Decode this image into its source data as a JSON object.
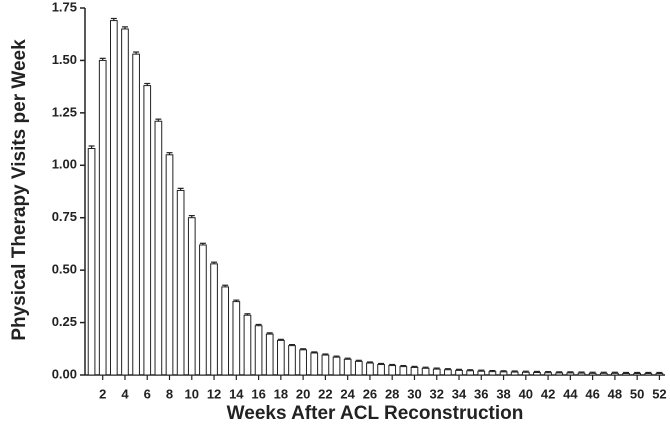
{
  "chart_data": {
    "type": "bar",
    "x_label": "Weeks After ACL Reconstruction",
    "y_label": "Physical Therapy Visits per Week",
    "categories": [
      null,
      "2",
      null,
      "4",
      null,
      "6",
      null,
      "8",
      null,
      "10",
      null,
      "12",
      null,
      "14",
      null,
      "16",
      null,
      "18",
      null,
      "20",
      null,
      "22",
      null,
      "24",
      null,
      "26",
      null,
      "28",
      null,
      "30",
      null,
      "32",
      null,
      "34",
      null,
      "36",
      null,
      "38",
      null,
      "40",
      null,
      "42",
      null,
      "44",
      null,
      "46",
      null,
      "48",
      null,
      "50",
      null,
      "52"
    ],
    "values": [
      1.08,
      1.5,
      1.69,
      1.65,
      1.53,
      1.38,
      1.21,
      1.05,
      0.88,
      0.75,
      0.62,
      0.53,
      0.42,
      0.35,
      0.285,
      0.235,
      0.195,
      0.165,
      0.14,
      0.12,
      0.105,
      0.095,
      0.085,
      0.075,
      0.065,
      0.057,
      0.05,
      0.045,
      0.04,
      0.036,
      0.032,
      0.028,
      0.025,
      0.022,
      0.02,
      0.018,
      0.016,
      0.015,
      0.014,
      0.013,
      0.012,
      0.011,
      0.01,
      0.01,
      0.009,
      0.008,
      0.008,
      0.008,
      0.007,
      0.007,
      0.007,
      0.007
    ],
    "errors": [
      0.012,
      0.01,
      0.01,
      0.01,
      0.01,
      0.01,
      0.01,
      0.01,
      0.01,
      0.01,
      0.008,
      0.008,
      0.008,
      0.007,
      0.007,
      0.006,
      0.006,
      0.005,
      0.005,
      0.005,
      0.005,
      0.005,
      0.005,
      0.005,
      0.005,
      0.005,
      0.005,
      0.005,
      0.005,
      0.005,
      0.005,
      0.005,
      0.005,
      0.005,
      0.005,
      0.005,
      0.005,
      0.005,
      0.005,
      0.005,
      0.005,
      0.005,
      0.005,
      0.005,
      0.005,
      0.005,
      0.005,
      0.005,
      0.005,
      0.005,
      0.005,
      0.005
    ],
    "color": "#ffffff",
    "edge_color": "#222222",
    "ylim": [
      0,
      1.75
    ],
    "yticks": [
      {
        "value": 0,
        "label": "0.00"
      },
      {
        "value": 0.25,
        "label": "0.25"
      },
      {
        "value": 0.5,
        "label": "0.50"
      },
      {
        "value": 0.75,
        "label": "0.75"
      },
      {
        "value": 1,
        "label": "1.00"
      },
      {
        "value": 1.25,
        "label": "1.25"
      },
      {
        "value": 1.5,
        "label": "1.50"
      },
      {
        "value": 1.75,
        "label": "1.75"
      }
    ],
    "grid": false
  }
}
